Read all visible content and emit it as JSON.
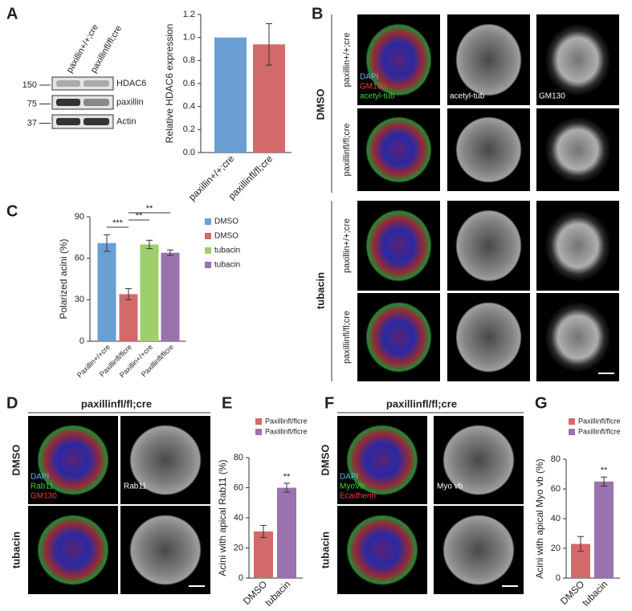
{
  "panel_labels": [
    "A",
    "B",
    "C",
    "D",
    "E",
    "F",
    "G"
  ],
  "blot": {
    "lanes": [
      "paxillin+/+;cre",
      "paxillinfl/fl;cre"
    ],
    "markers": [
      150,
      75,
      37
    ],
    "proteins": [
      "HDAC6",
      "paxillin",
      "Actin"
    ]
  },
  "panel_b": {
    "treatments": [
      "DMSO",
      "tubacin"
    ],
    "genotypes": [
      "paxillin+/+;cre",
      "paxillinfl/fl;cre",
      "paxillin+/+;cre",
      "paxillinfl/fl;cre"
    ],
    "stains": [
      "DAPI",
      "GM130",
      "acetyl-tub"
    ],
    "channels": [
      "acetyl-tub",
      "GM130"
    ]
  },
  "panel_d": {
    "title": "paxillinfl/fl;cre",
    "treatments": [
      "DMSO",
      "tubacin"
    ],
    "stains": [
      "DAPI",
      "Rab11",
      "GM130"
    ],
    "channel": "Rab11"
  },
  "panel_f": {
    "title": "paxillinfl/fl;cre",
    "treatments": [
      "DMSO",
      "tubacin"
    ],
    "stains": [
      "DAPI",
      "MyoVb",
      "Ecadherin"
    ],
    "channel": "Myo vb"
  },
  "chart_data": [
    {
      "type": "bar",
      "y_label": "Relative HDAC6 expression",
      "categories": [
        "paxillin+/+;cre",
        "paxillinfl/fl;cre"
      ],
      "values": [
        1.0,
        0.94
      ],
      "errors": [
        null,
        0.18
      ],
      "colors": [
        "#6a9fd4",
        "#d26a6a"
      ],
      "ylim": [
        0,
        1.2
      ],
      "yticks": [
        {
          "value": 0,
          "label": "0.0"
        },
        {
          "value": 0.2,
          "label": "0.2"
        },
        {
          "value": 0.4,
          "label": "0.4"
        },
        {
          "value": 0.6,
          "label": "0.6"
        },
        {
          "value": 0.8,
          "label": "0.8"
        },
        {
          "value": 1.0,
          "label": "1.0"
        },
        {
          "value": 1.2,
          "label": "1.2"
        }
      ]
    },
    {
      "type": "bar",
      "y_label": "Polarized acini (%)",
      "categories": [
        "Paxillin+/+cre",
        "Paxillinfl/flcre",
        "Paxillin+/+cre",
        "Paxillinfl/flcre"
      ],
      "values": [
        71,
        34,
        70,
        64
      ],
      "errors": [
        6,
        4,
        3,
        2
      ],
      "colors": [
        "#6a9fd4",
        "#d26a6a",
        "#9fcf6a",
        "#9a72ae"
      ],
      "legend": [
        "DMSO",
        "DMSO",
        "tubacin",
        "tubacin"
      ],
      "ylim": [
        0,
        90
      ],
      "yticks": [
        0,
        30,
        60,
        90
      ],
      "annotations": [
        "***",
        "**",
        "**"
      ]
    },
    {
      "type": "bar",
      "y_label": "Acini with apical Rab11 (%)",
      "categories": [
        "DMSO",
        "tubacin"
      ],
      "values": [
        31,
        60
      ],
      "errors": [
        4,
        3
      ],
      "colors": [
        "#d26a6a",
        "#9a72ae"
      ],
      "legend": [
        "Paxillinfl/flcre",
        "Paxillinfl/flcre"
      ],
      "ylim": [
        0,
        80
      ],
      "yticks": [
        0,
        20,
        40,
        60,
        80
      ],
      "annotations": [
        "**"
      ]
    },
    {
      "type": "bar",
      "y_label": "Acini with apical Myo vb (%)",
      "categories": [
        "DMSO",
        "tubacin"
      ],
      "values": [
        23,
        65
      ],
      "errors": [
        5,
        3
      ],
      "colors": [
        "#d26a6a",
        "#9a72ae"
      ],
      "legend": [
        "Paxillinfl/flcre",
        "Paxillinfl/flcre"
      ],
      "ylim": [
        0,
        80
      ],
      "yticks": [
        0,
        20,
        40,
        60,
        80
      ],
      "annotations": [
        "**"
      ]
    }
  ]
}
